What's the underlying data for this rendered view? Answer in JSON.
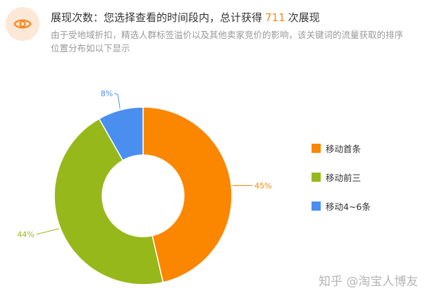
{
  "header": {
    "title_prefix": "展现次数：您选择查看的时间段内，总计获得",
    "title_count": "711",
    "title_suffix": "次展现",
    "desc_line1": "由于受地域折扣，精选人群标签溢价以及其他卖家竞价的影响，该关键词的流量获取的排序",
    "desc_line2": "位置分布如以下显示"
  },
  "colors": {
    "accent": "#f7871f",
    "eye_badge_bg": "#fde7d6"
  },
  "chart_data": {
    "type": "pie",
    "donut": true,
    "categories": [
      "移动首条",
      "移动前三",
      "移动4~6条"
    ],
    "values": [
      45,
      44,
      8
    ],
    "data_labels": [
      "45%",
      "44%",
      "8%"
    ],
    "colors": [
      "#fb8600",
      "#97b81a",
      "#4a8ff0"
    ],
    "legend_position": "right"
  },
  "watermark": "知乎 @淘宝人博友"
}
